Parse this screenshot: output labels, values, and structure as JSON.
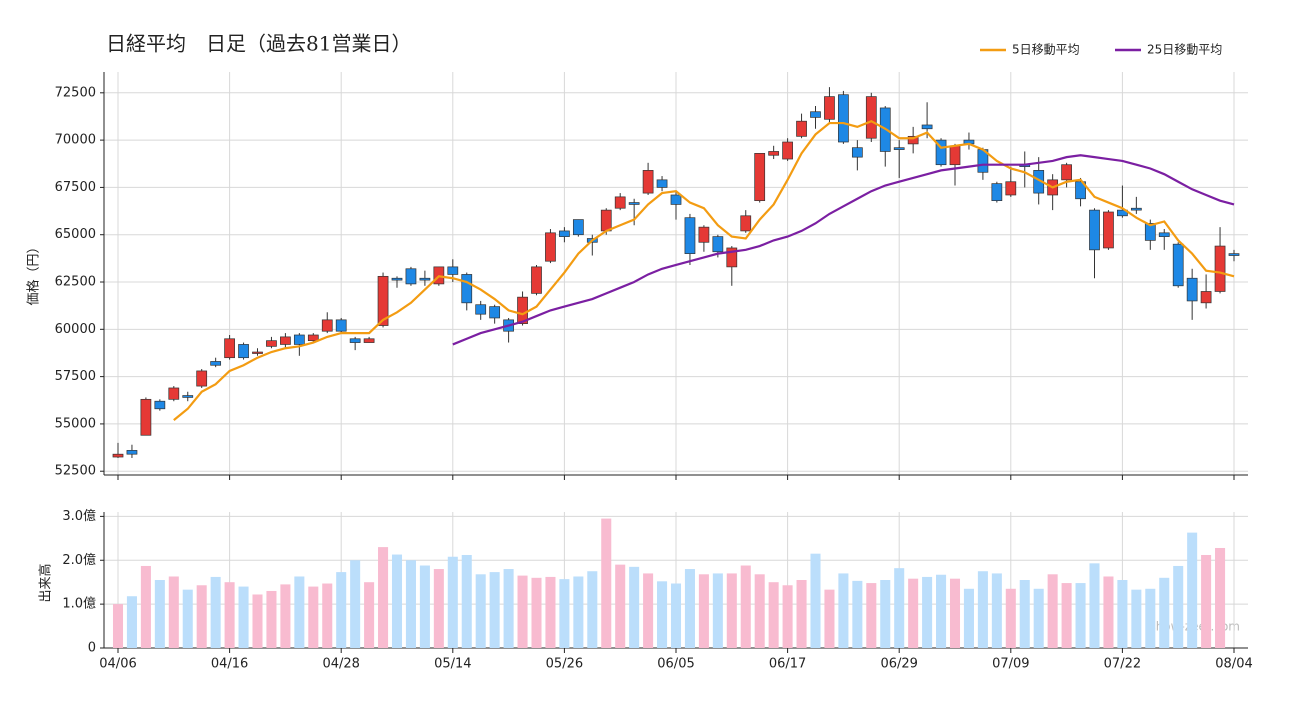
{
  "chart_data": [
    {
      "type": "candlestick",
      "title": "日経平均　日足（過去81営業日）",
      "y_label": "価格（円）",
      "up_color": "#e53935",
      "down_color": "#1e88e5",
      "grid": true,
      "legend": "top-right",
      "ylim": [
        52300,
        73600
      ],
      "yticks": [
        52500,
        55000,
        57500,
        60000,
        62500,
        65000,
        67500,
        70000,
        72500
      ],
      "open": [
        53250,
        53600,
        54400,
        56200,
        56300,
        56500,
        57000,
        58300,
        58500,
        59200,
        58750,
        59100,
        59200,
        59700,
        59400,
        59900,
        60500,
        59500,
        59300,
        60200,
        62700,
        63200,
        62700,
        62400,
        63300,
        62900,
        61300,
        61200,
        60500,
        60300,
        61900,
        63600,
        65200,
        65800,
        64800,
        65200,
        66400,
        66700,
        67200,
        67900,
        67100,
        65900,
        64600,
        64900,
        63300,
        65200,
        66800,
        69200,
        69000,
        70200,
        71500,
        71100,
        72400,
        69600,
        70100,
        71700,
        69600,
        69800,
        70800,
        70000,
        68700,
        70000,
        69500,
        67700,
        67100,
        68700,
        68400,
        67100,
        67900,
        67800,
        66300,
        64300,
        66300,
        66400,
        65600,
        65100,
        64500,
        62700,
        61400,
        62000,
        64000
      ],
      "high": [
        54000,
        53900,
        56400,
        56300,
        57000,
        56700,
        57900,
        58500,
        59700,
        59300,
        59000,
        59600,
        59800,
        59800,
        59800,
        60900,
        60600,
        59600,
        59600,
        63000,
        62800,
        63300,
        63100,
        63300,
        63700,
        63000,
        61500,
        61300,
        60600,
        62000,
        63400,
        65300,
        65400,
        65800,
        65000,
        66400,
        67200,
        66900,
        68800,
        68100,
        67300,
        66100,
        65500,
        65000,
        64400,
        66300,
        69300,
        69700,
        70100,
        71400,
        71800,
        72800,
        72600,
        70000,
        72500,
        71800,
        70000,
        70700,
        72000,
        70100,
        69800,
        70400,
        69600,
        67800,
        68600,
        69400,
        69100,
        68200,
        68800,
        68000,
        66400,
        66300,
        67600,
        67000,
        65800,
        65300,
        64600,
        63200,
        62900,
        65400,
        64200
      ],
      "low": [
        53200,
        53200,
        54400,
        55700,
        56200,
        56200,
        56900,
        58000,
        58400,
        58400,
        58600,
        59000,
        59000,
        58600,
        59300,
        59800,
        59800,
        58900,
        59300,
        60100,
        62200,
        62300,
        62300,
        62300,
        62500,
        61000,
        60500,
        60300,
        59300,
        60200,
        61800,
        63500,
        64600,
        64900,
        63900,
        65000,
        66300,
        65500,
        67100,
        67300,
        65800,
        63400,
        64100,
        63800,
        62300,
        65100,
        66700,
        69000,
        68900,
        70100,
        70600,
        70900,
        69800,
        68400,
        69900,
        68600,
        68000,
        69300,
        70100,
        68600,
        67600,
        69500,
        67900,
        66700,
        67000,
        67500,
        66600,
        66300,
        67500,
        66500,
        62700,
        64200,
        65900,
        66100,
        64200,
        64200,
        62200,
        60500,
        61100,
        61900,
        63600
      ],
      "close": [
        53400,
        53400,
        56300,
        55800,
        56900,
        56400,
        57800,
        58100,
        59500,
        58500,
        58800,
        59400,
        59600,
        59200,
        59700,
        60500,
        59900,
        59300,
        59500,
        62800,
        62600,
        62400,
        62600,
        63300,
        62900,
        61400,
        60800,
        60600,
        59900,
        61700,
        63300,
        65100,
        64900,
        65000,
        64600,
        66300,
        67000,
        66600,
        68400,
        67500,
        66600,
        64000,
        65400,
        64100,
        64300,
        66000,
        69300,
        69400,
        69900,
        71000,
        71200,
        72300,
        69900,
        69100,
        72300,
        69400,
        69500,
        70200,
        70600,
        68700,
        69700,
        69800,
        68300,
        66800,
        67800,
        68600,
        67200,
        67900,
        68700,
        66900,
        64200,
        66200,
        66000,
        66300,
        64700,
        64900,
        62300,
        61500,
        62000,
        64400,
        63900
      ],
      "lines": [
        {
          "name": "5日移動平均",
          "color": "#f39c12",
          "values": [
            null,
            null,
            null,
            null,
            55200,
            55800,
            56700,
            57100,
            57800,
            58100,
            58500,
            58800,
            59000,
            59100,
            59300,
            59600,
            59800,
            59800,
            59800,
            60500,
            60900,
            61400,
            62100,
            62800,
            62700,
            62500,
            62100,
            61600,
            61000,
            60800,
            61200,
            62100,
            63000,
            64000,
            64700,
            65200,
            65500,
            65800,
            66600,
            67200,
            67300,
            66700,
            66400,
            65500,
            64900,
            64800,
            65800,
            66600,
            67900,
            69300,
            70300,
            70900,
            70900,
            70700,
            71000,
            70600,
            70100,
            70100,
            70400,
            69600,
            69700,
            69800,
            69500,
            68900,
            68500,
            68300,
            67900,
            67500,
            67800,
            67900,
            67000,
            66700,
            66400,
            65900,
            65500,
            65700,
            64700,
            64000,
            63100,
            63000,
            62800
          ]
        },
        {
          "name": "25日移動平均",
          "color": "#7b1fa2",
          "values": [
            null,
            null,
            null,
            null,
            null,
            null,
            null,
            null,
            null,
            null,
            null,
            null,
            null,
            null,
            null,
            null,
            null,
            null,
            null,
            null,
            null,
            null,
            null,
            null,
            59200,
            59500,
            59800,
            60000,
            60200,
            60400,
            60700,
            61000,
            61200,
            61400,
            61600,
            61900,
            62200,
            62500,
            62900,
            63200,
            63400,
            63600,
            63800,
            64000,
            64100,
            64200,
            64400,
            64700,
            64900,
            65200,
            65600,
            66100,
            66500,
            66900,
            67300,
            67600,
            67800,
            68000,
            68200,
            68400,
            68500,
            68600,
            68700,
            68700,
            68700,
            68700,
            68800,
            68900,
            69100,
            69200,
            69100,
            69000,
            68900,
            68700,
            68500,
            68200,
            67800,
            67400,
            67100,
            66800,
            66600
          ]
        }
      ]
    },
    {
      "type": "bar",
      "y_label": "出来高",
      "watermark": "show-zeet.com",
      "up_color": "#f8bbd0",
      "down_color": "#bbdefb",
      "grid": true,
      "categories": [
        "04/06",
        null,
        null,
        null,
        null,
        null,
        null,
        null,
        "04/16",
        null,
        null,
        null,
        null,
        null,
        null,
        null,
        "04/28",
        null,
        null,
        null,
        null,
        null,
        null,
        null,
        "05/14",
        null,
        null,
        null,
        null,
        null,
        null,
        null,
        "05/26",
        null,
        null,
        null,
        null,
        null,
        null,
        null,
        "06/05",
        null,
        null,
        null,
        null,
        null,
        null,
        null,
        "06/17",
        null,
        null,
        null,
        null,
        null,
        null,
        null,
        "06/29",
        null,
        null,
        null,
        null,
        null,
        null,
        null,
        "07/09",
        null,
        null,
        null,
        null,
        null,
        null,
        null,
        "07/22",
        null,
        null,
        null,
        null,
        null,
        null,
        null,
        "08/04"
      ],
      "ylim": [
        0,
        3.1
      ],
      "yticks": [
        0,
        {
          "value": 1,
          "label": "1.0億"
        },
        {
          "value": 2,
          "label": "2.0億"
        },
        {
          "value": 3,
          "label": "3.0億"
        }
      ],
      "values": [
        1.0,
        1.18,
        1.87,
        1.55,
        1.63,
        1.33,
        1.43,
        1.62,
        1.5,
        1.4,
        1.22,
        1.3,
        1.45,
        1.63,
        1.4,
        1.47,
        1.73,
        2.0,
        1.5,
        2.3,
        2.13,
        2.0,
        1.88,
        1.8,
        2.08,
        2.12,
        1.68,
        1.73,
        1.8,
        1.65,
        1.6,
        1.62,
        1.57,
        1.63,
        1.75,
        2.95,
        1.9,
        1.85,
        1.7,
        1.52,
        1.47,
        1.8,
        1.68,
        1.7,
        1.7,
        1.88,
        1.68,
        1.5,
        1.43,
        1.55,
        2.15,
        1.33,
        1.7,
        1.53,
        1.48,
        1.55,
        1.82,
        1.58,
        1.62,
        1.67,
        1.58,
        1.35,
        1.75,
        1.7,
        1.35,
        1.55,
        1.35,
        1.68,
        1.48,
        1.48,
        1.93,
        1.63,
        1.55,
        1.33,
        1.35,
        1.6,
        1.87,
        2.63,
        2.12,
        2.28,
        null
      ]
    }
  ]
}
